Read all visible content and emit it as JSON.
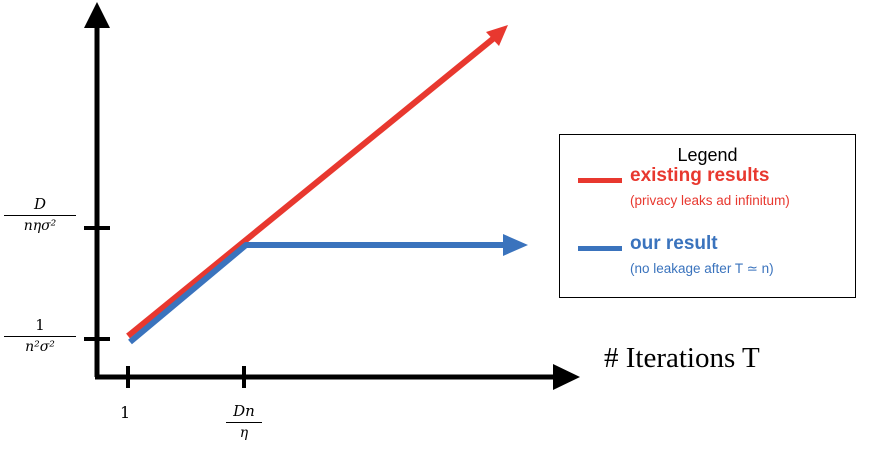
{
  "legend": {
    "title": "Legend",
    "items": [
      {
        "label": "existing results",
        "sublabel": "(privacy leaks ad infinitum)",
        "color": "#e8382f"
      },
      {
        "label": "our result",
        "sublabel": "(no leakage after T ≃ n)",
        "color": "#3a73bd"
      }
    ]
  },
  "x_axis": {
    "label": "# Iterations T",
    "ticks": [
      {
        "text": "1"
      },
      {
        "numerator": "Dn",
        "denominator": "η"
      }
    ]
  },
  "y_axis": {
    "ticks": [
      {
        "numerator": "1",
        "denominator": "n²σ²"
      },
      {
        "numerator": "D",
        "denominator": "nησ²"
      }
    ]
  },
  "colors": {
    "axis": "#000000",
    "existing": "#e8382f",
    "ours": "#3a73bd"
  }
}
